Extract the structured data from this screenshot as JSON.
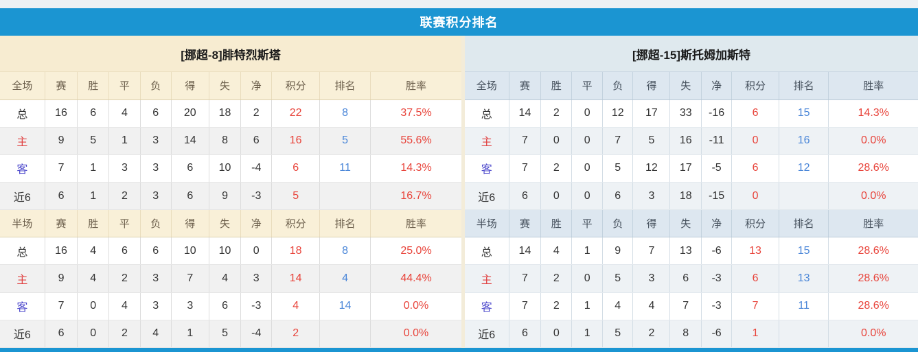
{
  "title": "联赛积分排名",
  "columns": {
    "stats": [
      "赛",
      "胜",
      "平",
      "负",
      "得",
      "失",
      "净",
      "积分",
      "排名",
      "胜率"
    ]
  },
  "colors": {
    "accent_blue": "#1b95d2",
    "points_red": "#e8433a",
    "rank_blue": "#4a86d8",
    "home_red": "#e04040",
    "away_blue": "#4a46cb"
  },
  "panels": [
    {
      "side": "left",
      "team": "[挪超-8]腓特烈斯塔",
      "sections": [
        {
          "label": "全场",
          "rows": [
            {
              "type": "total",
              "label": "总",
              "stats": [
                "16",
                "6",
                "4",
                "6",
                "20",
                "18",
                "2"
              ],
              "points": "22",
              "rank": "8",
              "rate": "37.5%"
            },
            {
              "type": "home",
              "label": "主",
              "stats": [
                "9",
                "5",
                "1",
                "3",
                "14",
                "8",
                "6"
              ],
              "points": "16",
              "rank": "5",
              "rate": "55.6%"
            },
            {
              "type": "away",
              "label": "客",
              "stats": [
                "7",
                "1",
                "3",
                "3",
                "6",
                "10",
                "-4"
              ],
              "points": "6",
              "rank": "11",
              "rate": "14.3%"
            },
            {
              "type": "recent",
              "label": "近6",
              "stats": [
                "6",
                "1",
                "2",
                "3",
                "6",
                "9",
                "-3"
              ],
              "points": "5",
              "rank": "",
              "rate": "16.7%"
            }
          ]
        },
        {
          "label": "半场",
          "rows": [
            {
              "type": "total",
              "label": "总",
              "stats": [
                "16",
                "4",
                "6",
                "6",
                "10",
                "10",
                "0"
              ],
              "points": "18",
              "rank": "8",
              "rate": "25.0%"
            },
            {
              "type": "home",
              "label": "主",
              "stats": [
                "9",
                "4",
                "2",
                "3",
                "7",
                "4",
                "3"
              ],
              "points": "14",
              "rank": "4",
              "rate": "44.4%"
            },
            {
              "type": "away",
              "label": "客",
              "stats": [
                "7",
                "0",
                "4",
                "3",
                "3",
                "6",
                "-3"
              ],
              "points": "4",
              "rank": "14",
              "rate": "0.0%"
            },
            {
              "type": "recent",
              "label": "近6",
              "stats": [
                "6",
                "0",
                "2",
                "4",
                "1",
                "5",
                "-4"
              ],
              "points": "2",
              "rank": "",
              "rate": "0.0%"
            }
          ]
        }
      ]
    },
    {
      "side": "right",
      "team": "[挪超-15]斯托姆加斯特",
      "sections": [
        {
          "label": "全场",
          "rows": [
            {
              "type": "total",
              "label": "总",
              "stats": [
                "14",
                "2",
                "0",
                "12",
                "17",
                "33",
                "-16"
              ],
              "points": "6",
              "rank": "15",
              "rate": "14.3%"
            },
            {
              "type": "home",
              "label": "主",
              "stats": [
                "7",
                "0",
                "0",
                "7",
                "5",
                "16",
                "-11"
              ],
              "points": "0",
              "rank": "16",
              "rate": "0.0%"
            },
            {
              "type": "away",
              "label": "客",
              "stats": [
                "7",
                "2",
                "0",
                "5",
                "12",
                "17",
                "-5"
              ],
              "points": "6",
              "rank": "12",
              "rate": "28.6%"
            },
            {
              "type": "recent",
              "label": "近6",
              "stats": [
                "6",
                "0",
                "0",
                "6",
                "3",
                "18",
                "-15"
              ],
              "points": "0",
              "rank": "",
              "rate": "0.0%"
            }
          ]
        },
        {
          "label": "半场",
          "rows": [
            {
              "type": "total",
              "label": "总",
              "stats": [
                "14",
                "4",
                "1",
                "9",
                "7",
                "13",
                "-6"
              ],
              "points": "13",
              "rank": "15",
              "rate": "28.6%"
            },
            {
              "type": "home",
              "label": "主",
              "stats": [
                "7",
                "2",
                "0",
                "5",
                "3",
                "6",
                "-3"
              ],
              "points": "6",
              "rank": "13",
              "rate": "28.6%"
            },
            {
              "type": "away",
              "label": "客",
              "stats": [
                "7",
                "2",
                "1",
                "4",
                "4",
                "7",
                "-3"
              ],
              "points": "7",
              "rank": "11",
              "rate": "28.6%"
            },
            {
              "type": "recent",
              "label": "近6",
              "stats": [
                "6",
                "0",
                "1",
                "5",
                "2",
                "8",
                "-6"
              ],
              "points": "1",
              "rank": "",
              "rate": "0.0%"
            }
          ]
        }
      ]
    }
  ]
}
